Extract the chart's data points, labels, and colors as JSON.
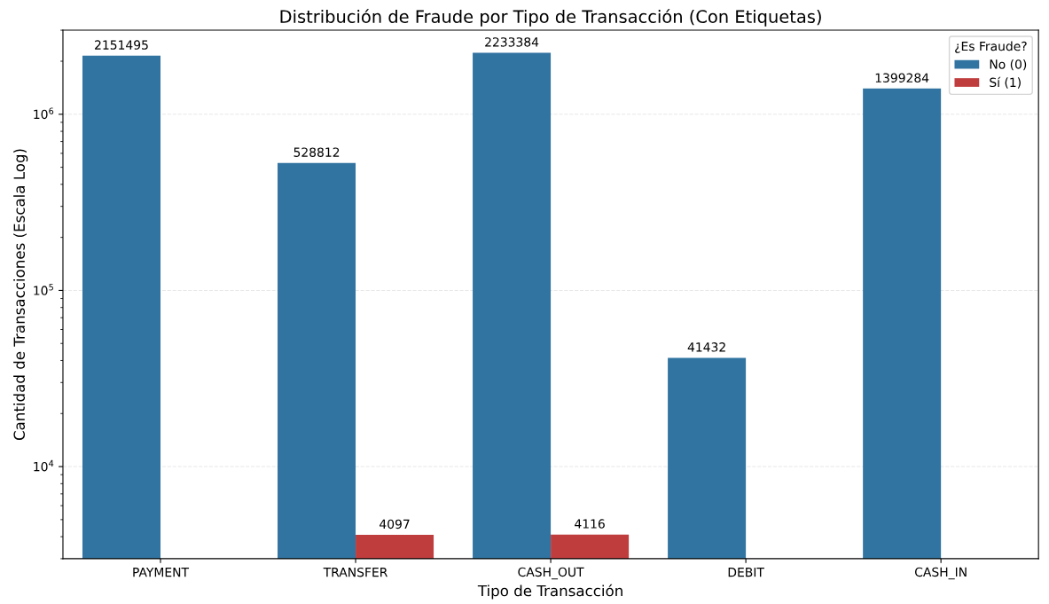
{
  "chart_data": {
    "type": "bar",
    "title": "Distribución de Fraude por Tipo de Transacción (Con Etiquetas)",
    "xlabel": "Tipo de Transacción",
    "ylabel": "Cantidad de Transacciones (Escala Log)",
    "legend_title": "¿Es Fraude?",
    "categories": [
      "PAYMENT",
      "TRANSFER",
      "CASH_OUT",
      "DEBIT",
      "CASH_IN"
    ],
    "series": [
      {
        "name": "No (0)",
        "color": "#3274a1",
        "values": [
          2151495,
          528812,
          2233384,
          41432,
          1399284
        ]
      },
      {
        "name": "Sí (1)",
        "color": "#c03d3e",
        "values": [
          null,
          4097,
          4116,
          null,
          null
        ]
      }
    ],
    "log": true,
    "ylim": [
      3000,
      3000000
    ],
    "yticks": [
      {
        "value": 10000,
        "label": "10$^{4}$"
      },
      {
        "value": 100000,
        "label": "10$^{5}$"
      },
      {
        "value": 1000000,
        "label": "10$^{6}$"
      }
    ],
    "grid": "y",
    "legend": "top right",
    "data_labels": true
  }
}
